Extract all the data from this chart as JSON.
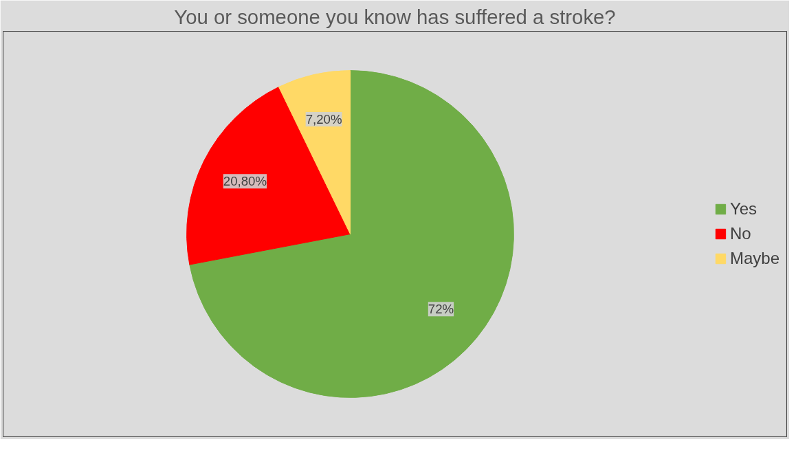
{
  "chart_data": {
    "type": "pie",
    "title": "You or someone you know has suffered a stroke?",
    "categories": [
      "Yes",
      "No",
      "Maybe"
    ],
    "values": [
      72,
      20.8,
      7.2
    ],
    "colors": [
      "#70ad47",
      "#ff0000",
      "#ffd966"
    ],
    "value_labels": [
      "72%",
      "20,80%",
      "7,20%"
    ],
    "legend": "right"
  }
}
